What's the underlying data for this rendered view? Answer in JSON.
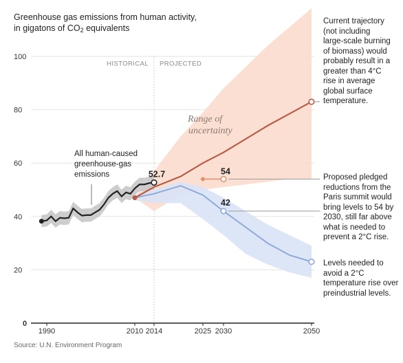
{
  "title": {
    "line1": "Greenhouse gas emissions from human activity,",
    "line2_prefix": "in gigatons of CO",
    "line2_sub": "2",
    "line2_suffix": " equivalents"
  },
  "source": "Source: U.N. Environment Program",
  "annotations": {
    "current_trajectory": [
      "Current trajectory",
      "(not including",
      "large-scale burning",
      "of biomass) would",
      "probably result in a",
      "greater than 4°C",
      "rise in average",
      "global surface",
      "temperature."
    ],
    "pledged": [
      "Proposed pledged",
      "reductions from the",
      "Paris summit would",
      "bring levels to 54 by",
      "2030, still far above",
      "what is needed to",
      "prevent a 2°C rise."
    ],
    "needed": [
      "Levels needed to",
      "avoid a 2°C",
      "temperature rise over",
      "preindustrial levels."
    ]
  },
  "colors": {
    "historical": "#222222",
    "historical_band": "#c8c8c8",
    "trajectory": "#b85c45",
    "trajectory_band": "#fbd9cb",
    "pledged": "#e0956f",
    "needed": "#8fa9d9",
    "needed_band": "#d9e3f5",
    "grid": "#e3e3e3"
  },
  "chart_data": {
    "type": "line",
    "title": "Greenhouse gas emissions from human activity, in gigatons of CO2 equivalents",
    "xlabel": "",
    "ylabel": "",
    "xlim": [
      1987,
      2051
    ],
    "ylim": [
      0,
      105
    ],
    "x_ticks": [
      1990,
      2010,
      2014,
      2025,
      2030,
      2050
    ],
    "y_ticks": [
      0,
      20,
      40,
      60,
      80,
      100
    ],
    "phases": [
      "HISTORICAL",
      "PROJECTED"
    ],
    "phase_divider_x": 2014,
    "series": [
      {
        "name": "All human-caused greenhouse-gas emissions",
        "label_lines": [
          "All human-caused",
          "greenhouse-gas",
          "emissions"
        ],
        "x": [
          1989,
          1990,
          1991,
          1992,
          1993,
          1994,
          1995,
          1996,
          1997,
          1998,
          1999,
          2000,
          2001,
          2002,
          2003,
          2004,
          2005,
          2006,
          2007,
          2008,
          2009,
          2010,
          2011,
          2012,
          2013,
          2014
        ],
        "values": [
          38.2,
          38.5,
          40.0,
          38.2,
          39.5,
          39.3,
          39.5,
          43.0,
          41.5,
          40.3,
          40.5,
          40.5,
          41.5,
          42.5,
          44.5,
          47.0,
          48.5,
          49.5,
          47.5,
          49.0,
          48.5,
          50.5,
          52.0,
          52.0,
          52.5,
          52.7
        ],
        "band_lower": [
          36.0,
          36.2,
          37.5,
          35.8,
          37.0,
          36.8,
          37.0,
          40.5,
          39.0,
          37.8,
          38.0,
          38.0,
          39.0,
          40.0,
          42.0,
          44.5,
          46.0,
          47.0,
          45.0,
          46.5,
          46.0,
          48.0,
          49.5,
          49.5,
          50.0,
          50.0
        ],
        "band_upper": [
          40.5,
          40.8,
          42.5,
          40.8,
          42.0,
          41.8,
          42.0,
          45.5,
          44.0,
          42.8,
          43.0,
          43.0,
          44.0,
          45.0,
          47.0,
          49.5,
          51.0,
          52.0,
          50.0,
          51.5,
          51.0,
          53.0,
          54.5,
          54.5,
          55.0,
          55.5
        ]
      },
      {
        "name": "Current trajectory",
        "x": [
          2010,
          2014,
          2020,
          2025,
          2030,
          2035,
          2040,
          2045,
          2050
        ],
        "values": [
          47,
          51,
          55,
          60,
          64,
          69,
          74,
          78.5,
          83
        ],
        "band_lower": [
          47,
          42,
          48,
          50,
          51,
          52,
          53,
          54,
          54
        ],
        "band_upper": [
          47,
          57,
          70,
          79,
          88,
          96,
          104,
          111,
          118
        ]
      },
      {
        "name": "Proposed pledged reductions",
        "x": [
          2025,
          2030
        ],
        "values": [
          54,
          54
        ],
        "reference_level": 54
      },
      {
        "name": "Levels needed to avoid a 2°C rise",
        "x": [
          2010,
          2014,
          2020,
          2025,
          2030,
          2035,
          2040,
          2045,
          2050
        ],
        "values": [
          47,
          48.5,
          51.5,
          48,
          42,
          36,
          30,
          25.5,
          23
        ],
        "band_lower": [
          46,
          45,
          45,
          39,
          33,
          26,
          22,
          19,
          17
        ],
        "band_upper": [
          48,
          50,
          53,
          51,
          47,
          42,
          37,
          33,
          29
        ]
      }
    ],
    "data_labels": [
      {
        "x": 2014,
        "y": 52.7,
        "text": "52.7"
      },
      {
        "x": 2030,
        "y": 54,
        "text": "54"
      },
      {
        "x": 2030,
        "y": 42,
        "text": "42"
      }
    ],
    "band_annotation": [
      "Range of",
      "uncertainty"
    ],
    "grid": true
  }
}
